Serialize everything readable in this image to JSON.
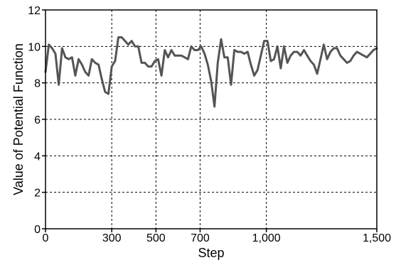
{
  "chart_data": {
    "type": "line",
    "title": "",
    "xlabel": "Step",
    "ylabel": "Value of Potential Function",
    "xlim": [
      0,
      1500
    ],
    "ylim": [
      0,
      12
    ],
    "x_ticks": [
      0,
      300,
      500,
      700,
      1000,
      1500
    ],
    "x_tick_labels": [
      "0",
      "300",
      "500",
      "700",
      "1,000",
      "1,500"
    ],
    "y_ticks": [
      0,
      2,
      4,
      6,
      8,
      10,
      12
    ],
    "y_tick_labels": [
      "0",
      "2",
      "4",
      "6",
      "8",
      "10",
      "12"
    ],
    "grid": true,
    "line_color": "#555555",
    "series": [
      {
        "x": [
          0,
          15,
          30,
          45,
          60,
          75,
          90,
          105,
          120,
          135,
          150,
          165,
          180,
          195,
          210,
          225,
          240,
          255,
          270,
          285,
          300,
          315,
          330,
          345,
          360,
          375,
          390,
          405,
          420,
          435,
          450,
          465,
          480,
          495,
          510,
          525,
          540,
          555,
          570,
          585,
          600,
          615,
          630,
          645,
          660,
          675,
          690,
          705,
          720,
          735,
          750,
          765,
          780,
          795,
          810,
          825,
          840,
          855,
          870,
          885,
          900,
          915,
          930,
          945,
          960,
          975,
          990,
          1005,
          1020,
          1035,
          1050,
          1065,
          1080,
          1095,
          1110,
          1125,
          1140,
          1155,
          1170,
          1185,
          1200,
          1215,
          1230,
          1245,
          1260,
          1275,
          1290,
          1305,
          1320,
          1335,
          1350,
          1365,
          1380,
          1395,
          1410,
          1425,
          1440,
          1455,
          1470,
          1485,
          1500
        ],
        "y": [
          8.6,
          10.1,
          9.9,
          9.6,
          7.9,
          9.9,
          9.4,
          9.3,
          9.4,
          8.4,
          9.3,
          9.0,
          8.6,
          8.4,
          9.3,
          9.1,
          9.0,
          8.2,
          7.5,
          7.4,
          8.9,
          9.2,
          10.5,
          10.5,
          10.3,
          10.1,
          10.3,
          10.0,
          10.0,
          9.1,
          9.1,
          8.9,
          8.9,
          9.2,
          9.3,
          8.4,
          9.8,
          9.4,
          9.8,
          9.5,
          9.5,
          9.5,
          9.4,
          9.3,
          10.0,
          9.8,
          9.8,
          10.0,
          9.6,
          9.0,
          8.1,
          6.7,
          9.1,
          10.4,
          9.4,
          9.4,
          7.9,
          9.8,
          9.7,
          9.7,
          9.6,
          9.7,
          9.0,
          8.4,
          8.7,
          9.5,
          10.3,
          10.3,
          9.2,
          9.3,
          10.0,
          8.8,
          10.0,
          9.1,
          9.5,
          9.7,
          9.7,
          9.5,
          9.8,
          9.5,
          9.2,
          9.0,
          8.5,
          9.3,
          10.1,
          9.3,
          9.7,
          9.9,
          9.9,
          9.5,
          9.3,
          9.1,
          9.2,
          9.5,
          9.7,
          9.6,
          9.5,
          9.4,
          9.6,
          9.8,
          9.9
        ]
      }
    ]
  }
}
